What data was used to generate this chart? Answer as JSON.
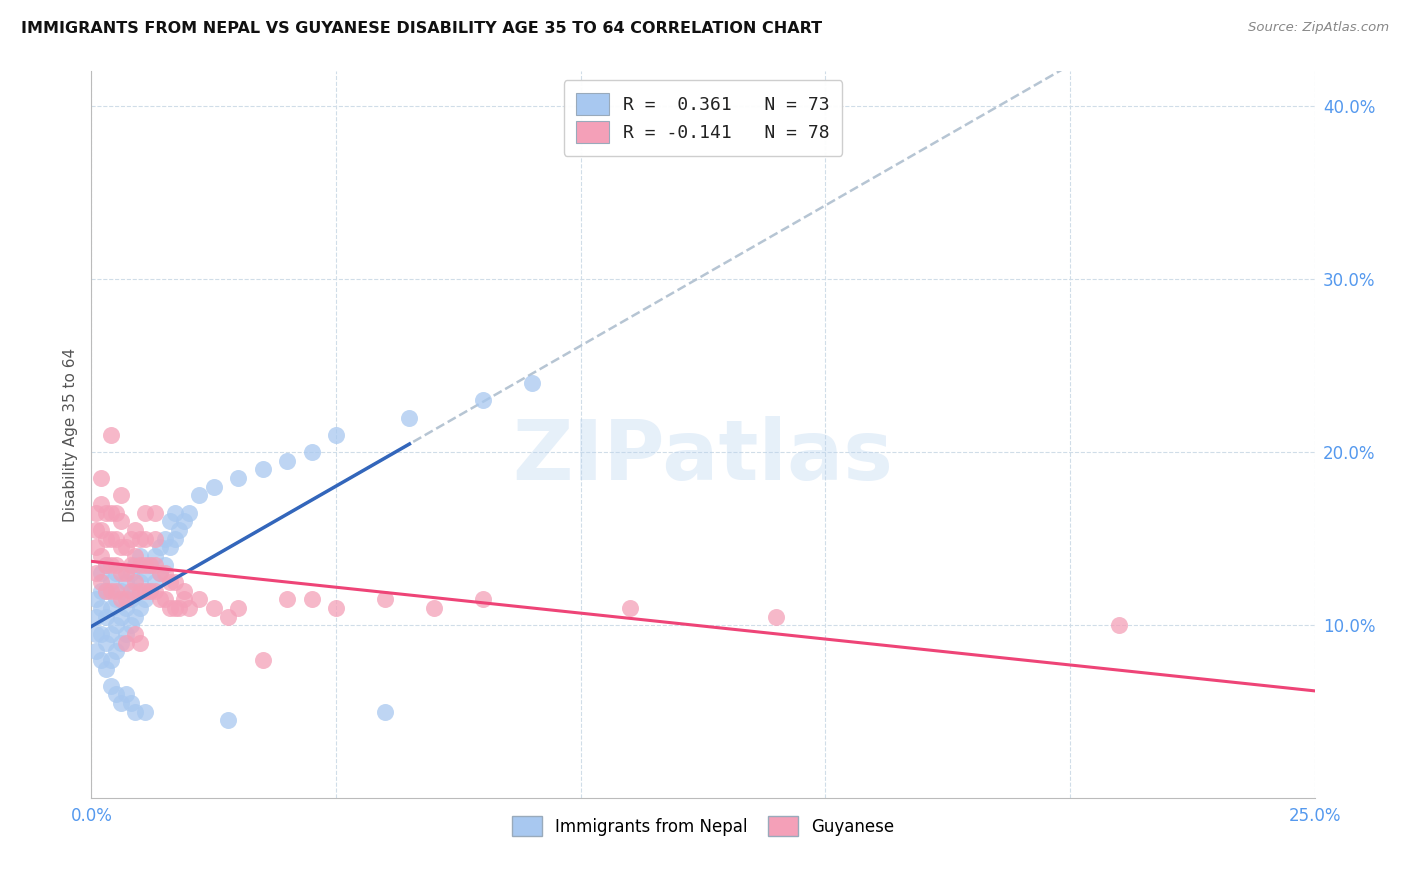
{
  "title": "IMMIGRANTS FROM NEPAL VS GUYANESE DISABILITY AGE 35 TO 64 CORRELATION CHART",
  "source": "Source: ZipAtlas.com",
  "ylabel": "Disability Age 35 to 64",
  "legend1_label": "R =  0.361   N = 73",
  "legend2_label": "R = -0.141   N = 78",
  "legend_bottom1": "Immigrants from Nepal",
  "legend_bottom2": "Guyanese",
  "nepal_color": "#a8c8f0",
  "nepal_edge_color": "#7aabde",
  "guyanese_color": "#f4a0b8",
  "guyanese_edge_color": "#e07898",
  "nepal_line_color": "#3366bb",
  "guyanese_line_color": "#ee4477",
  "dash_line_color": "#aabbcc",
  "watermark": "ZIPatlas",
  "watermark_color": "#b8d4f0",
  "xlim": [
    0.0,
    0.25
  ],
  "ylim": [
    0.0,
    0.42
  ],
  "yticks": [
    0.1,
    0.2,
    0.3,
    0.4
  ],
  "xticks": [
    0.0,
    0.05,
    0.1,
    0.15,
    0.2,
    0.25
  ],
  "tick_color": "#5599ee",
  "title_color": "#111111",
  "source_color": "#888888",
  "grid_color": "#d0dde8",
  "nepal_scatter": [
    [
      0.001,
      0.085
    ],
    [
      0.001,
      0.095
    ],
    [
      0.001,
      0.105
    ],
    [
      0.001,
      0.115
    ],
    [
      0.002,
      0.08
    ],
    [
      0.002,
      0.095
    ],
    [
      0.002,
      0.11
    ],
    [
      0.002,
      0.12
    ],
    [
      0.002,
      0.13
    ],
    [
      0.003,
      0.075
    ],
    [
      0.003,
      0.09
    ],
    [
      0.003,
      0.105
    ],
    [
      0.003,
      0.12
    ],
    [
      0.003,
      0.135
    ],
    [
      0.004,
      0.08
    ],
    [
      0.004,
      0.095
    ],
    [
      0.004,
      0.11
    ],
    [
      0.004,
      0.125
    ],
    [
      0.004,
      0.065
    ],
    [
      0.005,
      0.085
    ],
    [
      0.005,
      0.1
    ],
    [
      0.005,
      0.115
    ],
    [
      0.005,
      0.13
    ],
    [
      0.005,
      0.06
    ],
    [
      0.006,
      0.09
    ],
    [
      0.006,
      0.105
    ],
    [
      0.006,
      0.12
    ],
    [
      0.006,
      0.055
    ],
    [
      0.007,
      0.095
    ],
    [
      0.007,
      0.11
    ],
    [
      0.007,
      0.125
    ],
    [
      0.007,
      0.06
    ],
    [
      0.008,
      0.1
    ],
    [
      0.008,
      0.115
    ],
    [
      0.008,
      0.13
    ],
    [
      0.008,
      0.055
    ],
    [
      0.009,
      0.105
    ],
    [
      0.009,
      0.12
    ],
    [
      0.009,
      0.135
    ],
    [
      0.009,
      0.05
    ],
    [
      0.01,
      0.11
    ],
    [
      0.01,
      0.125
    ],
    [
      0.01,
      0.14
    ],
    [
      0.011,
      0.115
    ],
    [
      0.011,
      0.13
    ],
    [
      0.011,
      0.05
    ],
    [
      0.012,
      0.12
    ],
    [
      0.012,
      0.135
    ],
    [
      0.013,
      0.125
    ],
    [
      0.013,
      0.14
    ],
    [
      0.014,
      0.13
    ],
    [
      0.014,
      0.145
    ],
    [
      0.015,
      0.135
    ],
    [
      0.015,
      0.15
    ],
    [
      0.016,
      0.145
    ],
    [
      0.016,
      0.16
    ],
    [
      0.017,
      0.15
    ],
    [
      0.017,
      0.165
    ],
    [
      0.018,
      0.155
    ],
    [
      0.019,
      0.16
    ],
    [
      0.02,
      0.165
    ],
    [
      0.022,
      0.175
    ],
    [
      0.025,
      0.18
    ],
    [
      0.028,
      0.045
    ],
    [
      0.03,
      0.185
    ],
    [
      0.035,
      0.19
    ],
    [
      0.04,
      0.195
    ],
    [
      0.045,
      0.2
    ],
    [
      0.05,
      0.21
    ],
    [
      0.06,
      0.05
    ],
    [
      0.065,
      0.22
    ],
    [
      0.08,
      0.23
    ],
    [
      0.09,
      0.24
    ]
  ],
  "guyanese_scatter": [
    [
      0.001,
      0.13
    ],
    [
      0.001,
      0.145
    ],
    [
      0.001,
      0.155
    ],
    [
      0.001,
      0.165
    ],
    [
      0.002,
      0.125
    ],
    [
      0.002,
      0.14
    ],
    [
      0.002,
      0.155
    ],
    [
      0.002,
      0.17
    ],
    [
      0.002,
      0.185
    ],
    [
      0.003,
      0.12
    ],
    [
      0.003,
      0.135
    ],
    [
      0.003,
      0.15
    ],
    [
      0.003,
      0.165
    ],
    [
      0.004,
      0.12
    ],
    [
      0.004,
      0.135
    ],
    [
      0.004,
      0.15
    ],
    [
      0.004,
      0.165
    ],
    [
      0.004,
      0.21
    ],
    [
      0.005,
      0.12
    ],
    [
      0.005,
      0.135
    ],
    [
      0.005,
      0.15
    ],
    [
      0.005,
      0.165
    ],
    [
      0.006,
      0.115
    ],
    [
      0.006,
      0.13
    ],
    [
      0.006,
      0.145
    ],
    [
      0.006,
      0.16
    ],
    [
      0.006,
      0.175
    ],
    [
      0.007,
      0.115
    ],
    [
      0.007,
      0.13
    ],
    [
      0.007,
      0.145
    ],
    [
      0.007,
      0.09
    ],
    [
      0.008,
      0.12
    ],
    [
      0.008,
      0.135
    ],
    [
      0.008,
      0.15
    ],
    [
      0.009,
      0.125
    ],
    [
      0.009,
      0.14
    ],
    [
      0.009,
      0.155
    ],
    [
      0.009,
      0.095
    ],
    [
      0.01,
      0.12
    ],
    [
      0.01,
      0.135
    ],
    [
      0.01,
      0.15
    ],
    [
      0.01,
      0.09
    ],
    [
      0.011,
      0.12
    ],
    [
      0.011,
      0.135
    ],
    [
      0.011,
      0.15
    ],
    [
      0.011,
      0.165
    ],
    [
      0.012,
      0.12
    ],
    [
      0.012,
      0.135
    ],
    [
      0.013,
      0.12
    ],
    [
      0.013,
      0.135
    ],
    [
      0.013,
      0.15
    ],
    [
      0.013,
      0.165
    ],
    [
      0.014,
      0.115
    ],
    [
      0.014,
      0.13
    ],
    [
      0.015,
      0.115
    ],
    [
      0.015,
      0.13
    ],
    [
      0.016,
      0.11
    ],
    [
      0.016,
      0.125
    ],
    [
      0.017,
      0.11
    ],
    [
      0.017,
      0.125
    ],
    [
      0.018,
      0.11
    ],
    [
      0.019,
      0.115
    ],
    [
      0.019,
      0.12
    ],
    [
      0.02,
      0.11
    ],
    [
      0.022,
      0.115
    ],
    [
      0.025,
      0.11
    ],
    [
      0.028,
      0.105
    ],
    [
      0.03,
      0.11
    ],
    [
      0.035,
      0.08
    ],
    [
      0.04,
      0.115
    ],
    [
      0.045,
      0.115
    ],
    [
      0.05,
      0.11
    ],
    [
      0.06,
      0.115
    ],
    [
      0.07,
      0.11
    ],
    [
      0.08,
      0.115
    ],
    [
      0.11,
      0.11
    ],
    [
      0.14,
      0.105
    ],
    [
      0.21,
      0.1
    ]
  ]
}
